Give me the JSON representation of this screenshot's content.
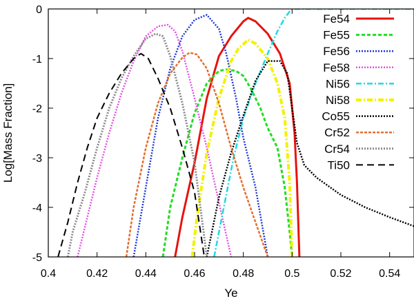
{
  "chart_data": {
    "type": "line",
    "title": "",
    "xlabel": "Ye",
    "ylabel": "Log[Mass Fraction]",
    "xlim": [
      0.4,
      0.55
    ],
    "ylim": [
      -5,
      0
    ],
    "xticks": [
      0.4,
      0.42,
      0.44,
      0.46,
      0.48,
      0.5,
      0.52,
      0.54
    ],
    "xtick_labels": [
      "0.4",
      "0.42",
      "0.44",
      "0.46",
      "0.48",
      "0.5",
      "0.52",
      "0.54"
    ],
    "yticks": [
      -5,
      -4,
      -3,
      -2,
      -1,
      0
    ],
    "ytick_labels": [
      "-5",
      "-4",
      "-3",
      "-2",
      "-1",
      "0"
    ],
    "grid": false,
    "legend_position": "top-right",
    "series": [
      {
        "name": "Fe54",
        "color": "#e8120c",
        "dash": "solid",
        "width": 3,
        "x": [
          0.452,
          0.455,
          0.46,
          0.465,
          0.47,
          0.475,
          0.48,
          0.482,
          0.485,
          0.49,
          0.495,
          0.499,
          0.501,
          0.502,
          0.503
        ],
        "y": [
          -5.0,
          -4.2,
          -3.1,
          -1.8,
          -0.95,
          -0.55,
          -0.25,
          -0.18,
          -0.25,
          -0.5,
          -0.9,
          -1.5,
          -2.5,
          -3.5,
          -5.0
        ]
      },
      {
        "name": "Fe55",
        "color": "#22dd22",
        "dash": "5,3",
        "width": 3,
        "x": [
          0.447,
          0.45,
          0.455,
          0.46,
          0.465,
          0.47,
          0.473,
          0.477,
          0.48,
          0.483,
          0.487,
          0.49,
          0.494,
          0.497,
          0.499,
          0.5
        ],
        "y": [
          -5.0,
          -4.0,
          -3.0,
          -2.1,
          -1.5,
          -1.25,
          -1.22,
          -1.25,
          -1.35,
          -1.6,
          -2.0,
          -2.4,
          -2.8,
          -3.6,
          -4.5,
          -5.0
        ]
      },
      {
        "name": "Fe56",
        "color": "#1a36d8",
        "dash": "2,2",
        "width": 2.5,
        "x": [
          0.435,
          0.44,
          0.445,
          0.45,
          0.455,
          0.46,
          0.465,
          0.47,
          0.473,
          0.477,
          0.48,
          0.485,
          0.49
        ],
        "y": [
          -5.0,
          -3.6,
          -2.2,
          -1.2,
          -0.55,
          -0.22,
          -0.12,
          -0.4,
          -0.9,
          -1.8,
          -2.6,
          -3.6,
          -5.0
        ]
      },
      {
        "name": "Fe58",
        "color": "#e050e0",
        "dash": "2,2",
        "width": 2.5,
        "x": [
          0.412,
          0.415,
          0.42,
          0.425,
          0.43,
          0.435,
          0.44,
          0.445,
          0.449,
          0.452,
          0.455,
          0.46,
          0.465,
          0.47,
          0.475
        ],
        "y": [
          -5.0,
          -4.4,
          -3.4,
          -2.5,
          -1.7,
          -1.05,
          -0.55,
          -0.35,
          -0.32,
          -0.45,
          -0.85,
          -1.8,
          -2.8,
          -3.9,
          -5.0
        ]
      },
      {
        "name": "Ni56",
        "color": "#20d8e0",
        "dash": "8,3,2,3",
        "width": 2.5,
        "x": [
          0.468,
          0.472,
          0.476,
          0.48,
          0.485,
          0.49,
          0.494,
          0.497,
          0.499,
          0.5,
          0.505,
          0.52,
          0.55
        ],
        "y": [
          -5.0,
          -4.0,
          -3.0,
          -2.2,
          -1.5,
          -0.9,
          -0.45,
          -0.18,
          -0.05,
          0.0,
          0.0,
          0.0,
          0.0
        ]
      },
      {
        "name": "Ni58",
        "color": "#f2f200",
        "dash": "8,3,2,3",
        "width": 4,
        "x": [
          0.459,
          0.461,
          0.465,
          0.47,
          0.475,
          0.478,
          0.482,
          0.485,
          0.49,
          0.494,
          0.497,
          0.499,
          0.5
        ],
        "y": [
          -5.0,
          -4.2,
          -2.9,
          -1.8,
          -1.05,
          -0.8,
          -0.62,
          -0.7,
          -1.0,
          -1.5,
          -2.2,
          -3.5,
          -5.0
        ]
      },
      {
        "name": "Co55",
        "color": "#000000",
        "dash": "2,2",
        "width": 2.5,
        "x": [
          0.465,
          0.47,
          0.475,
          0.48,
          0.485,
          0.49,
          0.495,
          0.498,
          0.5,
          0.502,
          0.505,
          0.51,
          0.52,
          0.53,
          0.54,
          0.55
        ],
        "y": [
          -5.0,
          -3.8,
          -2.9,
          -2.15,
          -1.45,
          -1.05,
          -1.05,
          -1.3,
          -2.0,
          -2.7,
          -3.15,
          -3.4,
          -3.75,
          -4.0,
          -4.2,
          -4.38
        ]
      },
      {
        "name": "Cr52",
        "color": "#e07030",
        "dash": "4,2",
        "width": 2.5,
        "x": [
          0.432,
          0.435,
          0.44,
          0.445,
          0.45,
          0.455,
          0.458,
          0.461,
          0.465,
          0.47,
          0.475,
          0.48,
          0.485,
          0.49
        ],
        "y": [
          -5.0,
          -4.0,
          -2.8,
          -1.9,
          -1.3,
          -0.98,
          -0.88,
          -0.92,
          -1.2,
          -1.9,
          -2.8,
          -3.6,
          -4.3,
          -5.0
        ]
      },
      {
        "name": "Cr54",
        "color": "#8a8a8a",
        "dash": "2,2",
        "width": 3,
        "x": [
          0.408,
          0.41,
          0.415,
          0.42,
          0.425,
          0.43,
          0.435,
          0.44,
          0.444,
          0.447,
          0.45,
          0.455,
          0.46,
          0.465
        ],
        "y": [
          -5.0,
          -4.5,
          -3.7,
          -2.8,
          -2.0,
          -1.4,
          -0.95,
          -0.6,
          -0.5,
          -0.55,
          -0.95,
          -1.9,
          -3.1,
          -5.0
        ]
      },
      {
        "name": "Ti50",
        "color": "#000000",
        "dash": "10,6",
        "width": 2,
        "x": [
          0.404,
          0.408,
          0.412,
          0.416,
          0.42,
          0.425,
          0.43,
          0.435,
          0.438,
          0.441,
          0.445,
          0.45,
          0.455,
          0.46,
          0.464
        ],
        "y": [
          -5.0,
          -4.3,
          -3.5,
          -2.8,
          -2.2,
          -1.7,
          -1.3,
          -1.0,
          -0.9,
          -1.0,
          -1.4,
          -2.0,
          -2.8,
          -3.7,
          -5.0
        ]
      }
    ]
  }
}
